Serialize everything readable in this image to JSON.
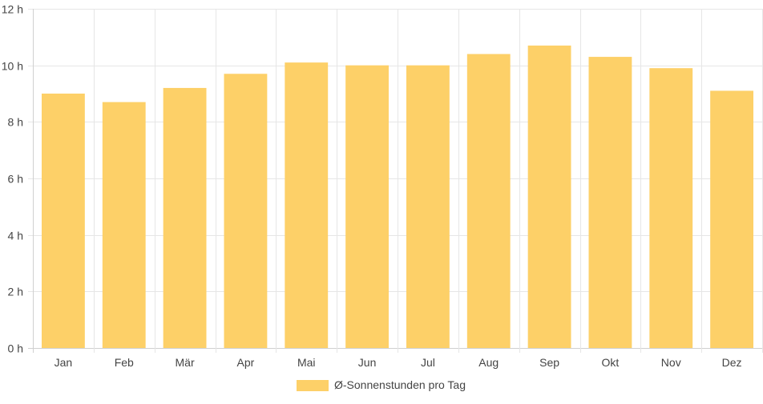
{
  "chart_data": {
    "type": "bar",
    "categories": [
      "Jan",
      "Feb",
      "Mär",
      "Apr",
      "Mai",
      "Jun",
      "Jul",
      "Aug",
      "Sep",
      "Okt",
      "Nov",
      "Dez"
    ],
    "series": [
      {
        "name": "Ø-Sonnenstunden pro Tag",
        "values": [
          9.0,
          8.7,
          9.2,
          9.7,
          10.1,
          10.0,
          10.0,
          10.4,
          10.7,
          10.3,
          9.9,
          9.1
        ]
      }
    ],
    "ylim": [
      0,
      12
    ],
    "yticks": [
      0,
      2,
      4,
      6,
      8,
      10,
      12
    ],
    "y_unit_suffix": " h",
    "grid": true,
    "legend_position": "bottom",
    "colors": {
      "bar": "#fdd068",
      "grid": "#e6e6e6",
      "axis": "#d0d0d0",
      "text": "#444444"
    }
  }
}
